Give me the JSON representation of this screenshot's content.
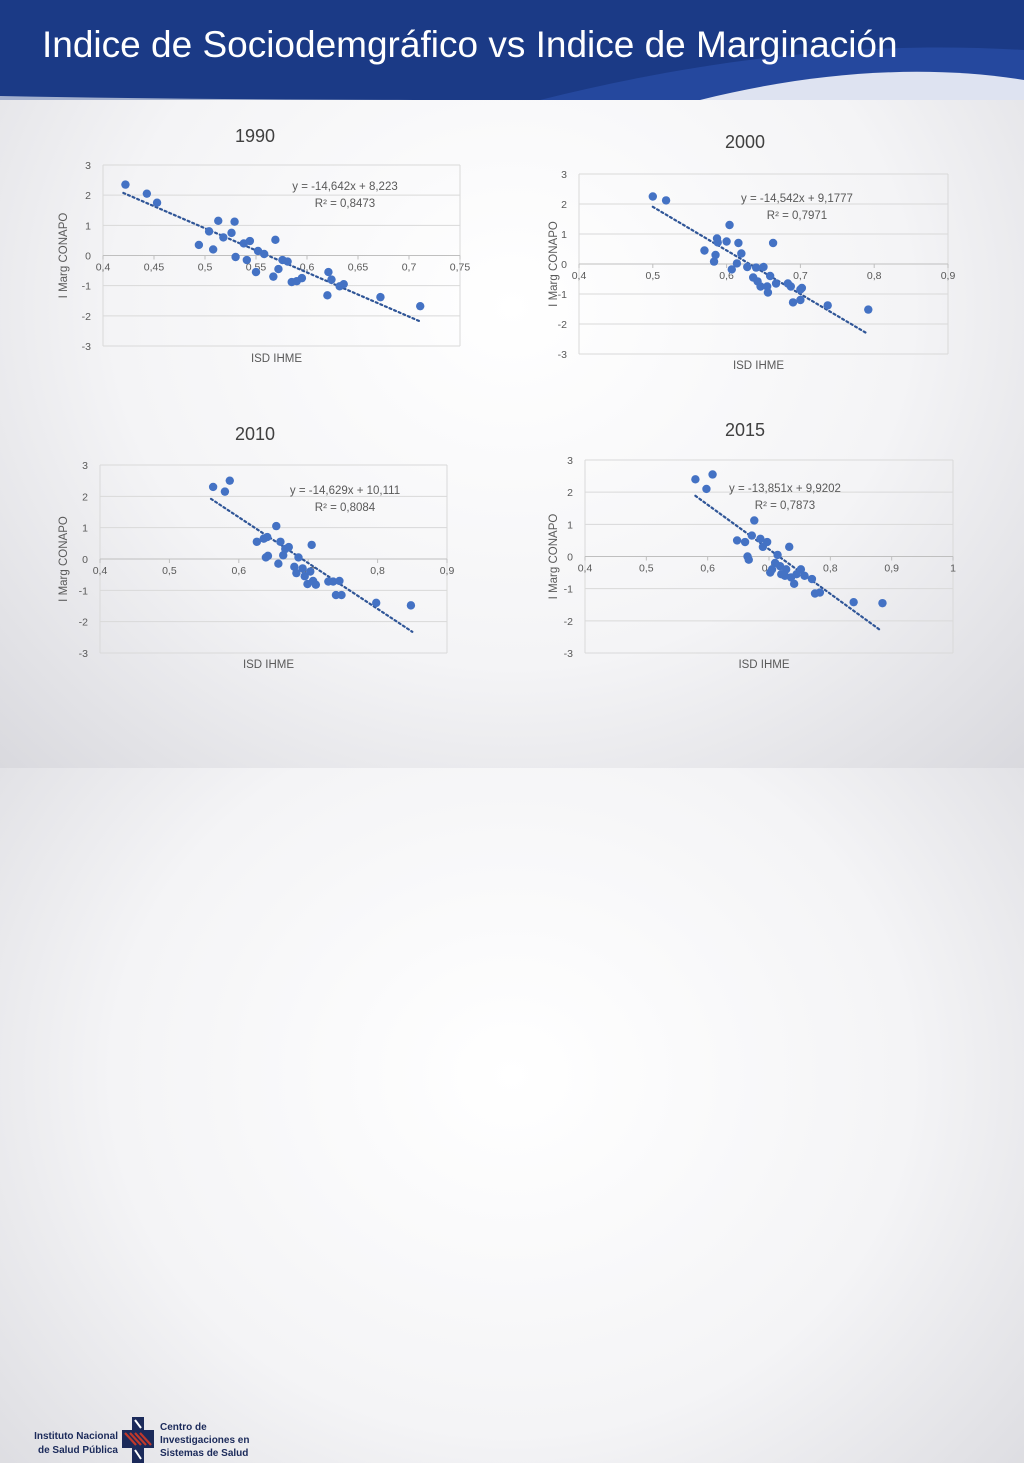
{
  "slide": {
    "title": "Indice de Sociodemgráfico vs Indice de Marginación"
  },
  "footer": {
    "left_logo_lines": [
      "Instituto Nacional",
      "de Salud Pública"
    ],
    "right_logo_lines": [
      "Centro de",
      "Investigaciones en",
      "Sistemas de Salud"
    ]
  },
  "colors": {
    "header": "#1b3a86",
    "point": "#4472c4",
    "trendline": "#2f5597"
  },
  "chart_data": [
    {
      "type": "scatter",
      "title": "1990",
      "xlabel": "ISD IHME",
      "ylabel": "I Marg CONAPO",
      "xlim": [
        0.4,
        0.75
      ],
      "ylim": [
        -3,
        3
      ],
      "xticks": [
        "0,4",
        "0,45",
        "0,5",
        "0,55",
        "0,6",
        "0,65",
        "0,7",
        "0,75"
      ],
      "yticks": [
        "-3",
        "-2",
        "-1",
        "0",
        "1",
        "2",
        "3"
      ],
      "trend_slope": -14.642,
      "trend_intercept": 8.223,
      "trend_range": [
        0.42,
        0.71
      ],
      "equation": "y = -14,642x + 8,223",
      "r2": "R² = 0,8473",
      "grid": "horizontal",
      "points": [
        [
          0.422,
          2.35
        ],
        [
          0.443,
          2.05
        ],
        [
          0.453,
          1.75
        ],
        [
          0.494,
          0.35
        ],
        [
          0.504,
          0.8
        ],
        [
          0.508,
          0.2
        ],
        [
          0.513,
          1.15
        ],
        [
          0.518,
          0.6
        ],
        [
          0.526,
          0.75
        ],
        [
          0.529,
          1.12
        ],
        [
          0.53,
          -0.05
        ],
        [
          0.538,
          0.4
        ],
        [
          0.541,
          -0.15
        ],
        [
          0.544,
          0.48
        ],
        [
          0.55,
          -0.55
        ],
        [
          0.552,
          0.15
        ],
        [
          0.558,
          0.05
        ],
        [
          0.567,
          -0.7
        ],
        [
          0.569,
          0.52
        ],
        [
          0.572,
          -0.45
        ],
        [
          0.576,
          -0.15
        ],
        [
          0.581,
          -0.2
        ],
        [
          0.585,
          -0.88
        ],
        [
          0.59,
          -0.85
        ],
        [
          0.595,
          -0.75
        ],
        [
          0.62,
          -1.32
        ],
        [
          0.621,
          -0.55
        ],
        [
          0.624,
          -0.8
        ],
        [
          0.632,
          -1.02
        ],
        [
          0.636,
          -0.95
        ],
        [
          0.672,
          -1.38
        ],
        [
          0.711,
          -1.68
        ]
      ]
    },
    {
      "type": "scatter",
      "title": "2000",
      "xlabel": "ISD IHME",
      "ylabel": "I Marg CONAPO",
      "xlim": [
        0.4,
        0.9
      ],
      "ylim": [
        -3,
        3
      ],
      "xticks": [
        "0,4",
        "0,5",
        "0,6",
        "0,7",
        "0,8",
        "0,9"
      ],
      "yticks": [
        "-3",
        "-2",
        "-1",
        "0",
        "1",
        "2",
        "3"
      ],
      "trend_slope": -14.542,
      "trend_intercept": 9.1777,
      "trend_range": [
        0.5,
        0.79
      ],
      "equation": "y = -14,542x + 9,1777",
      "r2": "R² = 0,7971",
      "grid": "horizontal",
      "points": [
        [
          0.5,
          2.25
        ],
        [
          0.518,
          2.12
        ],
        [
          0.57,
          0.45
        ],
        [
          0.583,
          0.08
        ],
        [
          0.585,
          0.3
        ],
        [
          0.587,
          0.85
        ],
        [
          0.588,
          0.72
        ],
        [
          0.6,
          0.75
        ],
        [
          0.604,
          1.3
        ],
        [
          0.607,
          -0.18
        ],
        [
          0.614,
          0.02
        ],
        [
          0.616,
          0.7
        ],
        [
          0.62,
          0.35
        ],
        [
          0.628,
          -0.1
        ],
        [
          0.636,
          -0.45
        ],
        [
          0.64,
          -0.12
        ],
        [
          0.642,
          -0.58
        ],
        [
          0.646,
          -0.75
        ],
        [
          0.65,
          -0.1
        ],
        [
          0.655,
          -0.75
        ],
        [
          0.656,
          -0.95
        ],
        [
          0.659,
          -0.4
        ],
        [
          0.663,
          0.7
        ],
        [
          0.667,
          -0.65
        ],
        [
          0.683,
          -0.65
        ],
        [
          0.687,
          -0.75
        ],
        [
          0.69,
          -1.28
        ],
        [
          0.7,
          -0.85
        ],
        [
          0.7,
          -1.2
        ],
        [
          0.702,
          -0.8
        ],
        [
          0.737,
          -1.38
        ],
        [
          0.792,
          -1.52
        ]
      ]
    },
    {
      "type": "scatter",
      "title": "2010",
      "xlabel": "ISD IHME",
      "ylabel": "I Marg CONAPO",
      "xlim": [
        0.4,
        0.9
      ],
      "ylim": [
        -3,
        3
      ],
      "xticks": [
        "0,4",
        "0,5",
        "0,6",
        "0,7",
        "0,8",
        "0,9"
      ],
      "yticks": [
        "-3",
        "-2",
        "-1",
        "0",
        "1",
        "2",
        "3"
      ],
      "trend_slope": -14.629,
      "trend_intercept": 10.111,
      "trend_range": [
        0.56,
        0.85
      ],
      "equation": "y = -14,629x + 10,111",
      "r2": "R² = 0,8084",
      "grid": "horizontal",
      "points": [
        [
          0.563,
          2.3
        ],
        [
          0.58,
          2.15
        ],
        [
          0.587,
          2.5
        ],
        [
          0.626,
          0.55
        ],
        [
          0.636,
          0.65
        ],
        [
          0.639,
          0.05
        ],
        [
          0.641,
          0.7
        ],
        [
          0.642,
          0.1
        ],
        [
          0.654,
          1.05
        ],
        [
          0.657,
          -0.15
        ],
        [
          0.66,
          0.55
        ],
        [
          0.664,
          0.12
        ],
        [
          0.667,
          0.32
        ],
        [
          0.672,
          0.38
        ],
        [
          0.68,
          -0.25
        ],
        [
          0.683,
          -0.45
        ],
        [
          0.686,
          0.05
        ],
        [
          0.692,
          -0.3
        ],
        [
          0.695,
          -0.55
        ],
        [
          0.699,
          -0.8
        ],
        [
          0.703,
          -0.4
        ],
        [
          0.705,
          0.45
        ],
        [
          0.707,
          -0.7
        ],
        [
          0.711,
          -0.82
        ],
        [
          0.729,
          -0.72
        ],
        [
          0.736,
          -0.72
        ],
        [
          0.74,
          -1.15
        ],
        [
          0.745,
          -0.7
        ],
        [
          0.748,
          -1.15
        ],
        [
          0.798,
          -1.4
        ],
        [
          0.848,
          -1.48
        ]
      ]
    },
    {
      "type": "scatter",
      "title": "2015",
      "xlabel": "ISD IHME",
      "ylabel": "I Marg CONAPO",
      "xlim": [
        0.4,
        1
      ],
      "ylim": [
        -3,
        3
      ],
      "xticks": [
        "0,4",
        "0,5",
        "0,6",
        "0,7",
        "0,8",
        "0,9",
        "1"
      ],
      "yticks": [
        "-3",
        "-2",
        "-1",
        "0",
        "1",
        "2",
        "3"
      ],
      "trend_slope": -13.851,
      "trend_intercept": 9.9202,
      "trend_range": [
        0.58,
        0.88
      ],
      "equation": "y = -13,851x + 9,9202",
      "r2": "R² = 0,7873",
      "grid": "horizontal",
      "points": [
        [
          0.58,
          2.4
        ],
        [
          0.598,
          2.1
        ],
        [
          0.608,
          2.55
        ],
        [
          0.648,
          0.5
        ],
        [
          0.661,
          0.45
        ],
        [
          0.665,
          0.0
        ],
        [
          0.667,
          -0.1
        ],
        [
          0.672,
          0.65
        ],
        [
          0.676,
          1.12
        ],
        [
          0.686,
          0.55
        ],
        [
          0.69,
          0.3
        ],
        [
          0.697,
          0.45
        ],
        [
          0.702,
          -0.5
        ],
        [
          0.705,
          -0.4
        ],
        [
          0.71,
          -0.2
        ],
        [
          0.714,
          0.05
        ],
        [
          0.718,
          -0.3
        ],
        [
          0.72,
          -0.55
        ],
        [
          0.726,
          -0.6
        ],
        [
          0.728,
          -0.4
        ],
        [
          0.733,
          0.3
        ],
        [
          0.736,
          -0.65
        ],
        [
          0.741,
          -0.85
        ],
        [
          0.745,
          -0.55
        ],
        [
          0.752,
          -0.4
        ],
        [
          0.758,
          -0.6
        ],
        [
          0.77,
          -0.7
        ],
        [
          0.775,
          -1.15
        ],
        [
          0.783,
          -1.12
        ],
        [
          0.838,
          -1.42
        ],
        [
          0.885,
          -1.45
        ]
      ]
    }
  ]
}
